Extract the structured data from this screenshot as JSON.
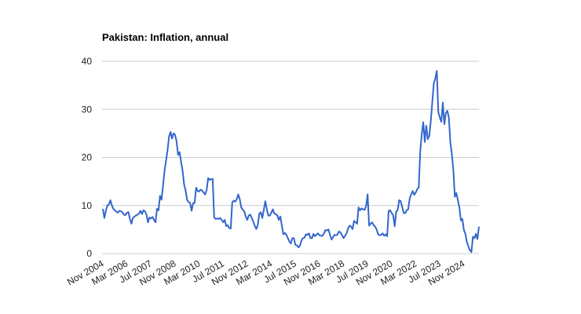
{
  "chart_data": {
    "type": "line",
    "title": "Pakistan: Inflation, annual",
    "categories": [
      "Nov 2004",
      null,
      null,
      null,
      null,
      null,
      null,
      null,
      null,
      null,
      null,
      null,
      null,
      null,
      null,
      null,
      "Mar 2006",
      null,
      null,
      null,
      null,
      null,
      null,
      null,
      null,
      null,
      null,
      null,
      null,
      null,
      null,
      null,
      "Jul 2007",
      null,
      null,
      null,
      null,
      null,
      null,
      null,
      null,
      null,
      null,
      null,
      null,
      null,
      null,
      null,
      "Nov 2008",
      null,
      null,
      null,
      null,
      null,
      null,
      null,
      null,
      null,
      null,
      null,
      null,
      null,
      null,
      null,
      "Mar 2010",
      null,
      null,
      null,
      null,
      null,
      null,
      null,
      null,
      null,
      null,
      null,
      null,
      null,
      null,
      null,
      "Jul 2011",
      null,
      null,
      null,
      null,
      null,
      null,
      null,
      null,
      null,
      null,
      null,
      null,
      null,
      null,
      null,
      "Nov 2012",
      null,
      null,
      null,
      null,
      null,
      null,
      null,
      null,
      null,
      null,
      null,
      null,
      null,
      null,
      null,
      "Mar 2014",
      null,
      null,
      null,
      null,
      null,
      null,
      null,
      null,
      null,
      null,
      null,
      null,
      null,
      null,
      null,
      "Jul 2015",
      null,
      null,
      null,
      null,
      null,
      null,
      null,
      null,
      null,
      null,
      null,
      null,
      null,
      null,
      null,
      "Nov 2016",
      null,
      null,
      null,
      null,
      null,
      null,
      null,
      null,
      null,
      null,
      null,
      null,
      null,
      null,
      null,
      "Mar 2018",
      null,
      null,
      null,
      null,
      null,
      null,
      null,
      null,
      null,
      null,
      null,
      null,
      null,
      null,
      null,
      "Jul 2019",
      null,
      null,
      null,
      null,
      null,
      null,
      null,
      null,
      null,
      null,
      null,
      null,
      null,
      null,
      null,
      "Nov 2020",
      null,
      null,
      null,
      null,
      null,
      null,
      null,
      null,
      null,
      null,
      null,
      null,
      null,
      null,
      null,
      "Mar 2022",
      null,
      null,
      null,
      null,
      null,
      null,
      null,
      null,
      null,
      null,
      null,
      null,
      null,
      null,
      null,
      "Jul 2023",
      null,
      null,
      null,
      null,
      null,
      null,
      null,
      null,
      null,
      null,
      null,
      null,
      null,
      null,
      null,
      "Nov 2024",
      null,
      null,
      null,
      null,
      null,
      null,
      null,
      null,
      null,
      null
    ],
    "values": [
      9.3,
      7.4,
      8.9,
      10.0,
      10.2,
      11.1,
      10.0,
      9.3,
      9.0,
      8.7,
      8.5,
      8.9,
      8.8,
      8.6,
      8.1,
      8.0,
      8.5,
      8.6,
      7.2,
      6.2,
      7.4,
      7.7,
      7.9,
      8.1,
      8.3,
      8.9,
      8.2,
      9.0,
      8.8,
      8.1,
      6.5,
      7.5,
      7.3,
      7.6,
      7.0,
      6.5,
      9.3,
      9.0,
      12.0,
      11.2,
      14.1,
      17.2,
      19.3,
      21.5,
      24.3,
      25.3,
      23.9,
      25.0,
      24.7,
      23.3,
      20.5,
      21.1,
      19.1,
      17.2,
      14.4,
      13.1,
      11.2,
      10.7,
      10.5,
      8.9,
      10.5,
      10.5,
      13.7,
      13.0,
      12.9,
      13.3,
      13.1,
      12.7,
      12.3,
      13.2,
      15.7,
      15.3,
      15.5,
      15.5,
      7.5,
      7.2,
      7.3,
      7.2,
      7.4,
      7.0,
      6.5,
      7.0,
      5.7,
      5.9,
      5.3,
      5.2,
      10.6,
      11.0,
      10.8,
      11.3,
      12.3,
      11.3,
      9.6,
      9.1,
      8.8,
      7.7,
      7.0,
      7.9,
      8.1,
      7.4,
      6.6,
      5.8,
      5.1,
      5.9,
      8.3,
      8.6,
      7.4,
      9.1,
      10.9,
      9.2,
      7.9,
      7.9,
      8.5,
      9.2,
      8.3,
      8.2,
      7.9,
      7.0,
      7.7,
      5.8,
      4.0,
      4.3,
      3.9,
      3.2,
      2.5,
      2.1,
      3.2,
      3.2,
      1.8,
      1.7,
      1.3,
      1.6,
      2.7,
      3.2,
      3.3,
      4.0,
      3.9,
      4.2,
      3.2,
      3.2,
      4.1,
      3.6,
      3.9,
      4.2,
      3.8,
      3.7,
      3.7,
      4.2,
      4.9,
      4.8,
      5.0,
      3.9,
      2.9,
      3.4,
      3.9,
      3.8,
      4.0,
      4.6,
      4.4,
      3.8,
      3.2,
      3.7,
      4.2,
      5.2,
      5.8,
      5.6,
      5.1,
      6.8,
      6.5,
      6.2,
      9.6,
      9.0,
      9.4,
      9.2,
      9.1,
      9.9,
      12.3,
      5.8,
      6.2,
      6.5,
      5.9,
      5.6,
      5.0,
      4.0,
      3.8,
      3.9,
      4.2,
      3.7,
      4.0,
      3.6,
      8.9,
      9.0,
      8.4,
      8.0,
      5.7,
      8.7,
      9.1,
      11.1,
      10.9,
      9.7,
      8.4,
      8.4,
      9.0,
      9.2,
      11.5,
      12.3,
      13.0,
      12.2,
      12.7,
      13.4,
      13.8,
      21.3,
      24.9,
      27.3,
      23.2,
      26.6,
      23.8,
      24.5,
      27.6,
      31.5,
      35.4,
      36.4,
      38.0,
      29.4,
      28.3,
      27.4,
      31.4,
      26.9,
      29.2,
      29.7,
      28.3,
      23.1,
      20.7,
      17.3,
      11.8,
      12.6,
      11.1,
      9.6,
      6.9,
      7.2,
      4.9,
      4.1,
      2.4,
      1.5,
      0.7,
      0.3,
      3.5,
      3.2,
      4.1,
      3.0,
      5.6
    ],
    "color": "#3366cc",
    "ylim": [
      0,
      40
    ],
    "yticks": [
      0,
      10,
      20,
      30,
      40
    ],
    "grid": true
  }
}
